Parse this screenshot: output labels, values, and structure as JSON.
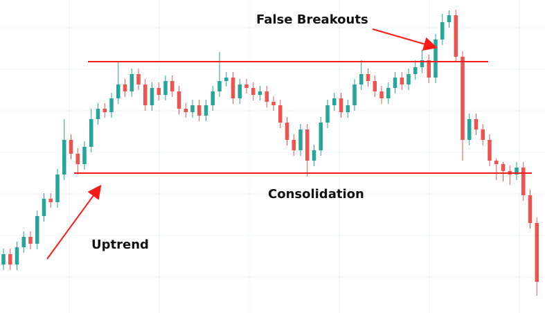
{
  "chart_data": {
    "type": "candlestick",
    "annotations": [
      "False Breakouts",
      "Consolidation",
      "Uptrend"
    ],
    "ylim": [
      0,
      452
    ],
    "grid": true,
    "up_color": "#26a69a",
    "down_color": "#ef5350",
    "level_color": "#ff1a1a",
    "levels": [
      363,
      202
    ],
    "open": [
      70,
      85,
      70,
      95,
      110,
      100,
      140,
      165,
      160,
      200,
      250,
      230,
      215,
      240,
      280,
      295,
      290,
      310,
      330,
      320,
      345,
      330,
      300,
      325,
      315,
      335,
      320,
      295,
      290,
      300,
      285,
      300,
      320,
      335,
      340,
      310,
      330,
      325,
      315,
      320,
      305,
      300,
      275,
      250,
      235,
      265,
      220,
      235,
      275,
      300,
      310,
      290,
      300,
      330,
      345,
      335,
      320,
      310,
      325,
      340,
      330,
      345,
      355,
      365,
      340,
      395,
      420,
      430,
      370,
      250,
      280,
      265,
      250,
      220,
      215,
      205,
      200,
      210,
      170,
      130
    ],
    "high": [
      93,
      93,
      103,
      118,
      118,
      148,
      173,
      173,
      208,
      280,
      258,
      238,
      248,
      295,
      303,
      303,
      318,
      363,
      338,
      353,
      353,
      338,
      333,
      333,
      343,
      343,
      328,
      303,
      308,
      308,
      308,
      328,
      377,
      348,
      348,
      338,
      338,
      333,
      328,
      328,
      313,
      308,
      283,
      258,
      273,
      273,
      243,
      283,
      308,
      318,
      318,
      308,
      338,
      365,
      353,
      343,
      328,
      333,
      348,
      348,
      353,
      365,
      380,
      373,
      403,
      432,
      437,
      438,
      378,
      288,
      288,
      273,
      258,
      223,
      218,
      213,
      218,
      218,
      178,
      138
    ],
    "low": [
      62,
      62,
      62,
      87,
      92,
      92,
      132,
      152,
      152,
      192,
      222,
      200,
      207,
      232,
      272,
      282,
      282,
      302,
      312,
      312,
      322,
      292,
      292,
      307,
      307,
      312,
      287,
      282,
      282,
      277,
      277,
      292,
      312,
      327,
      302,
      302,
      317,
      307,
      307,
      297,
      292,
      267,
      242,
      227,
      227,
      197,
      212,
      227,
      267,
      292,
      282,
      282,
      292,
      322,
      327,
      312,
      302,
      302,
      317,
      322,
      322,
      337,
      347,
      332,
      332,
      387,
      412,
      362,
      220,
      242,
      257,
      242,
      212,
      192,
      190,
      185,
      192,
      162,
      122,
      25
    ],
    "close": [
      85,
      70,
      95,
      110,
      100,
      140,
      165,
      160,
      200,
      250,
      230,
      215,
      240,
      280,
      295,
      290,
      310,
      330,
      320,
      345,
      330,
      300,
      325,
      315,
      335,
      320,
      295,
      290,
      300,
      285,
      300,
      320,
      335,
      340,
      310,
      330,
      325,
      315,
      320,
      305,
      300,
      275,
      250,
      235,
      265,
      220,
      235,
      275,
      300,
      310,
      290,
      300,
      330,
      345,
      335,
      320,
      310,
      325,
      340,
      330,
      345,
      355,
      365,
      340,
      395,
      420,
      430,
      370,
      250,
      280,
      265,
      250,
      220,
      215,
      205,
      200,
      210,
      170,
      130,
      45
    ]
  }
}
